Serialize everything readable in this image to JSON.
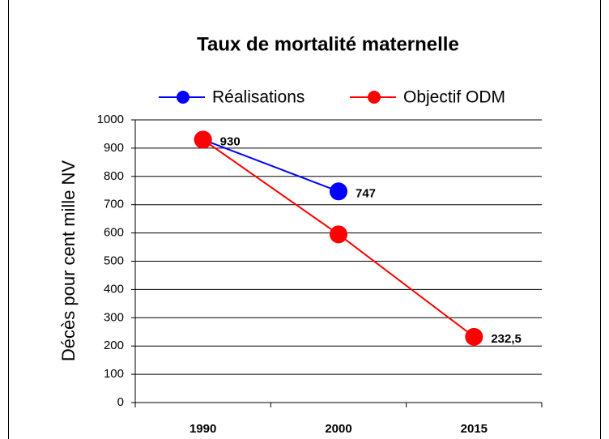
{
  "chart_data": {
    "type": "line",
    "title": "Taux de mortalité maternelle",
    "y_label": "Décès pour cent mille NV",
    "categories": [
      "1990",
      "2000",
      "2015"
    ],
    "series": [
      {
        "name": "Réalisations",
        "color": "#0000ff",
        "values": [
          930,
          747,
          null
        ],
        "value_labels": [
          "930",
          "747",
          null
        ]
      },
      {
        "name": "Objectif ODM",
        "color": "#ff0000",
        "values": [
          930,
          595,
          232.5
        ],
        "value_labels": [
          null,
          null,
          "232,5"
        ]
      }
    ],
    "ylim": [
      0,
      1000
    ],
    "yticks": [
      0,
      100,
      200,
      300,
      400,
      500,
      600,
      700,
      800,
      900,
      1000
    ],
    "grid": true,
    "legend": "top"
  }
}
